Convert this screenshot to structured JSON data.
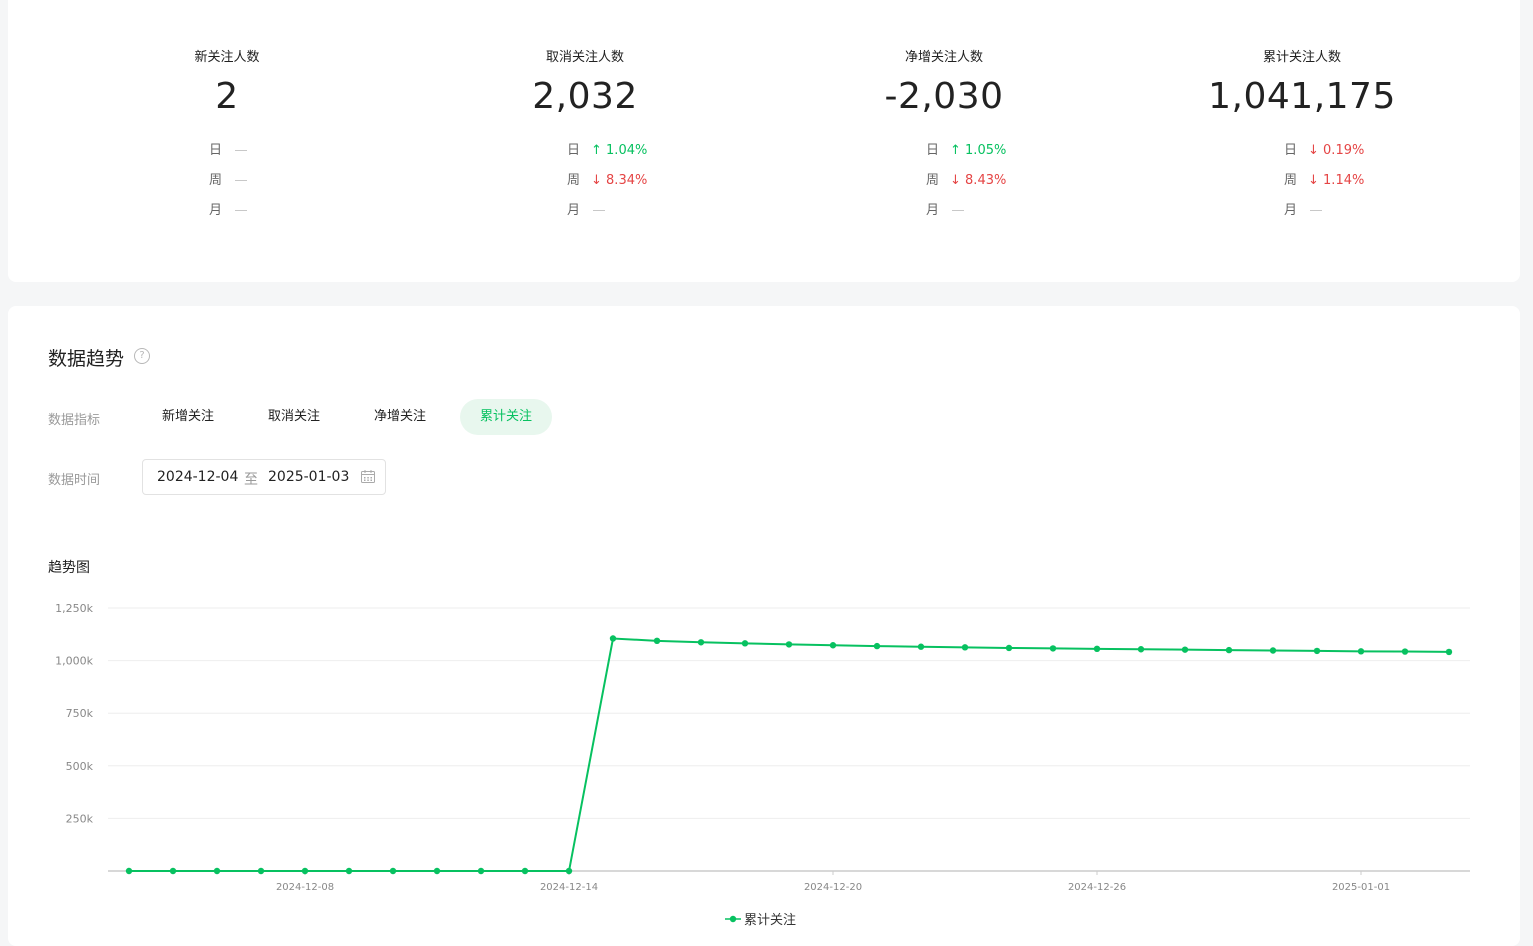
{
  "stats": [
    {
      "label": "新关注人数",
      "value": "2",
      "cmp": [
        {
          "period": "日",
          "dir": "none",
          "text": ""
        },
        {
          "period": "周",
          "dir": "none",
          "text": ""
        },
        {
          "period": "月",
          "dir": "none",
          "text": ""
        }
      ]
    },
    {
      "label": "取消关注人数",
      "value": "2,032",
      "cmp": [
        {
          "period": "日",
          "dir": "up",
          "text": "1.04%"
        },
        {
          "period": "周",
          "dir": "down",
          "text": "8.34%"
        },
        {
          "period": "月",
          "dir": "none",
          "text": ""
        }
      ]
    },
    {
      "label": "净增关注人数",
      "value": "-2,030",
      "cmp": [
        {
          "period": "日",
          "dir": "up",
          "text": "1.05%"
        },
        {
          "period": "周",
          "dir": "down",
          "text": "8.43%"
        },
        {
          "period": "月",
          "dir": "none",
          "text": ""
        }
      ]
    },
    {
      "label": "累计关注人数",
      "value": "1,041,175",
      "cmp": [
        {
          "period": "日",
          "dir": "down",
          "text": "0.19%"
        },
        {
          "period": "周",
          "dir": "down",
          "text": "1.14%"
        },
        {
          "period": "月",
          "dir": "none",
          "text": ""
        }
      ]
    }
  ],
  "trend": {
    "title": "数据趋势",
    "help_icon": "question-circle-icon",
    "metric_label": "数据指标",
    "metrics": [
      "新增关注",
      "取消关注",
      "净增关注",
      "累计关注"
    ],
    "active_metric": "累计关注",
    "time_label": "数据时间",
    "date_start": "2024-12-04",
    "date_sep": "至",
    "date_end": "2025-01-03",
    "calendar_icon": "calendar-icon",
    "chart_title": "趋势图"
  },
  "colors": {
    "accent": "#07c160",
    "down": "#e54545"
  },
  "chart_data": {
    "type": "line",
    "title": "",
    "xlabel": "",
    "ylabel": "",
    "ylim": [
      0,
      1250000
    ],
    "yticks": [
      {
        "v": 250000,
        "label": "250k"
      },
      {
        "v": 500000,
        "label": "500k"
      },
      {
        "v": 750000,
        "label": "750k"
      },
      {
        "v": 1000000,
        "label": "1,000k"
      },
      {
        "v": 1250000,
        "label": "1,250k"
      }
    ],
    "xtick_labels": [
      "2024-12-08",
      "2024-12-14",
      "2024-12-20",
      "2024-12-26",
      "2025-01-01"
    ],
    "x": [
      "2024-12-04",
      "2024-12-05",
      "2024-12-06",
      "2024-12-07",
      "2024-12-08",
      "2024-12-09",
      "2024-12-10",
      "2024-12-11",
      "2024-12-12",
      "2024-12-13",
      "2024-12-14",
      "2024-12-15",
      "2024-12-16",
      "2024-12-17",
      "2024-12-18",
      "2024-12-19",
      "2024-12-20",
      "2024-12-21",
      "2024-12-22",
      "2024-12-23",
      "2024-12-24",
      "2024-12-25",
      "2024-12-26",
      "2024-12-27",
      "2024-12-28",
      "2024-12-29",
      "2024-12-30",
      "2024-12-31",
      "2025-01-01",
      "2025-01-02",
      "2025-01-03"
    ],
    "series": [
      {
        "name": "累计关注",
        "values": [
          0,
          0,
          0,
          0,
          0,
          0,
          0,
          0,
          0,
          0,
          0,
          1105000,
          1094000,
          1087000,
          1082000,
          1077000,
          1073000,
          1069000,
          1066000,
          1063000,
          1060000,
          1058000,
          1056000,
          1054000,
          1052000,
          1050000,
          1048000,
          1046000,
          1044000,
          1043000,
          1041175
        ]
      }
    ],
    "legend": "bottom-center",
    "grid": true
  }
}
